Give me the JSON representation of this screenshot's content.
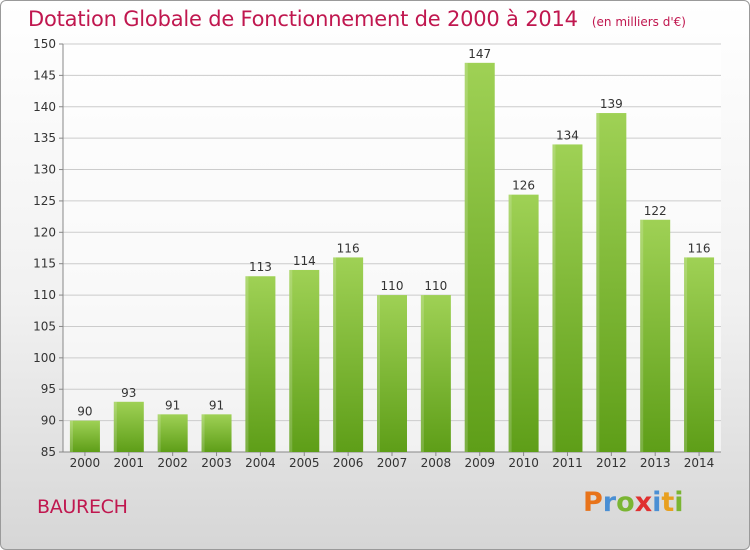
{
  "title": "Dotation Globale de Fonctionnement de 2000 à 2014",
  "subtitle": "(en milliers d'€)",
  "commune": "BAURECH",
  "logo": {
    "letters": [
      "P",
      "r",
      "o",
      "x",
      "i",
      "t",
      "i"
    ],
    "colors": [
      "#e8731a",
      "#4a8fd4",
      "#7ab532",
      "#e03030",
      "#4a8fd4",
      "#e8a020",
      "#7ab532"
    ]
  },
  "colors": {
    "title": "#c0174f",
    "bar_top": "#9fd155",
    "bar_bottom": "#5e9e18",
    "grid": "#cccccc"
  },
  "chart_data": {
    "type": "bar",
    "categories": [
      "2000",
      "2001",
      "2002",
      "2003",
      "2004",
      "2005",
      "2006",
      "2007",
      "2008",
      "2009",
      "2010",
      "2011",
      "2012",
      "2013",
      "2014"
    ],
    "values": [
      90,
      93,
      91,
      91,
      113,
      114,
      116,
      110,
      110,
      147,
      126,
      134,
      139,
      122,
      116
    ],
    "ylim": [
      85,
      150
    ],
    "yticks": [
      85,
      90,
      95,
      100,
      105,
      110,
      115,
      120,
      125,
      130,
      135,
      140,
      145,
      150
    ],
    "grid": true,
    "data_labels": true
  }
}
